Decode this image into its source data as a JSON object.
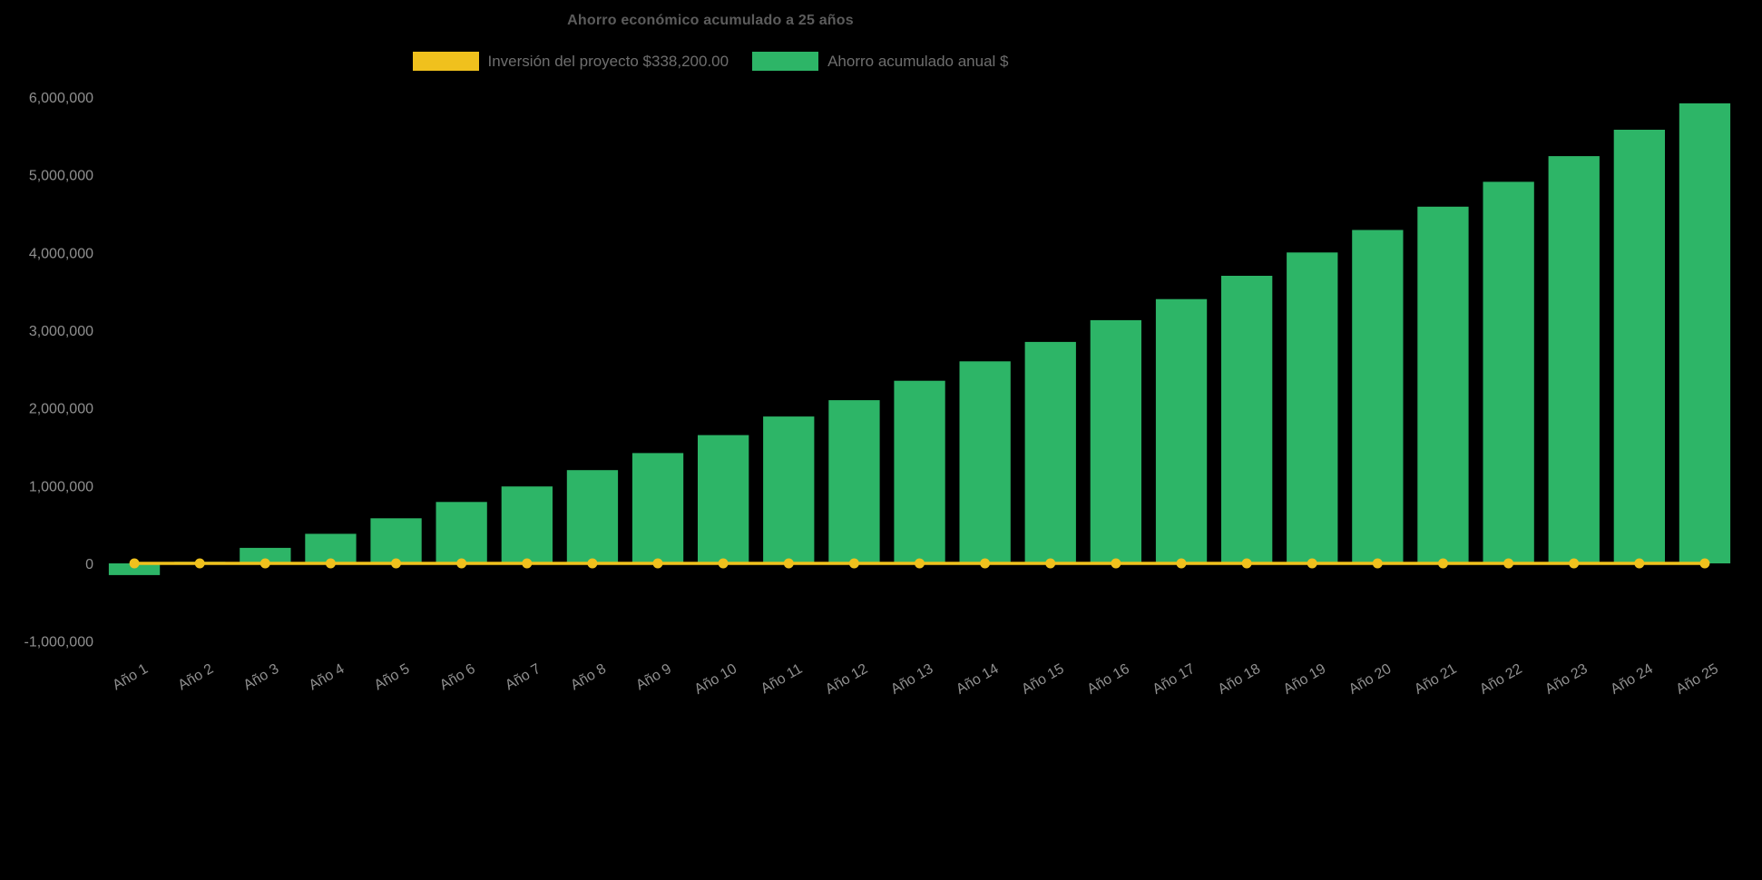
{
  "chart_data": {
    "type": "bar",
    "title": "Ahorro económico acumulado a 25 años",
    "categories": [
      "Año 1",
      "Año 2",
      "Año 3",
      "Año 4",
      "Año 5",
      "Año 6",
      "Año 7",
      "Año 8",
      "Año 9",
      "Año 10",
      "Año 11",
      "Año 12",
      "Año 13",
      "Año 14",
      "Año 15",
      "Año 16",
      "Año 17",
      "Año 18",
      "Año 19",
      "Año 20",
      "Año 21",
      "Año 22",
      "Año 23",
      "Año 24",
      "Año 25"
    ],
    "series": [
      {
        "name": "Inversión del proyecto $338,200.00",
        "type": "line",
        "color": "#f0c11d",
        "values": [
          0,
          0,
          0,
          0,
          0,
          0,
          0,
          0,
          0,
          0,
          0,
          0,
          0,
          0,
          0,
          0,
          0,
          0,
          0,
          0,
          0,
          0,
          0,
          0,
          0
        ]
      },
      {
        "name": "Ahorro acumulado anual $",
        "type": "bar",
        "color": "#2db567",
        "values": [
          -150000,
          20000,
          200000,
          380000,
          580000,
          790000,
          990000,
          1200000,
          1420000,
          1650000,
          1890000,
          2100000,
          2350000,
          2600000,
          2850000,
          3130000,
          3400000,
          3700000,
          4000000,
          4290000,
          4590000,
          4910000,
          5240000,
          5580000,
          5920000
        ]
      }
    ],
    "ylim": [
      -1000000,
      6000000
    ],
    "ytick_step": 1000000,
    "yticks": [
      {
        "value": 6000000,
        "label": "6,000,000"
      },
      {
        "value": 5000000,
        "label": "5,000,000"
      },
      {
        "value": 4000000,
        "label": "4,000,000"
      },
      {
        "value": 3000000,
        "label": "3,000,000"
      },
      {
        "value": 2000000,
        "label": "2,000,000"
      },
      {
        "value": 1000000,
        "label": "1,000,000"
      },
      {
        "value": 0,
        "label": "0"
      },
      {
        "value": -1000000,
        "label": "-1,000,000"
      }
    ],
    "xlabel": "",
    "ylabel": "",
    "grid": false,
    "legend_position": "top",
    "background": "#000000"
  }
}
